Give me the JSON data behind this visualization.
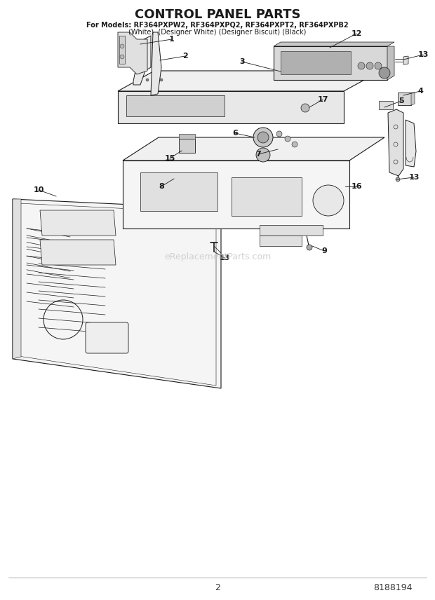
{
  "title": "CONTROL PANEL PARTS",
  "subtitle1": "For Models: RF364PXPW2, RF364PXPQ2, RF364PXPT2, RF364PXPB2",
  "subtitle2": "(White)  (Designer White) (Designer Biscuit) (Black)",
  "page_number": "2",
  "part_number": "8188194",
  "watermark": "eReplacementParts.com",
  "bg": "#ffffff",
  "lc": "#1a1a1a",
  "wm_color": "#cccccc",
  "fig_w": 6.2,
  "fig_h": 8.56,
  "dpi": 100
}
